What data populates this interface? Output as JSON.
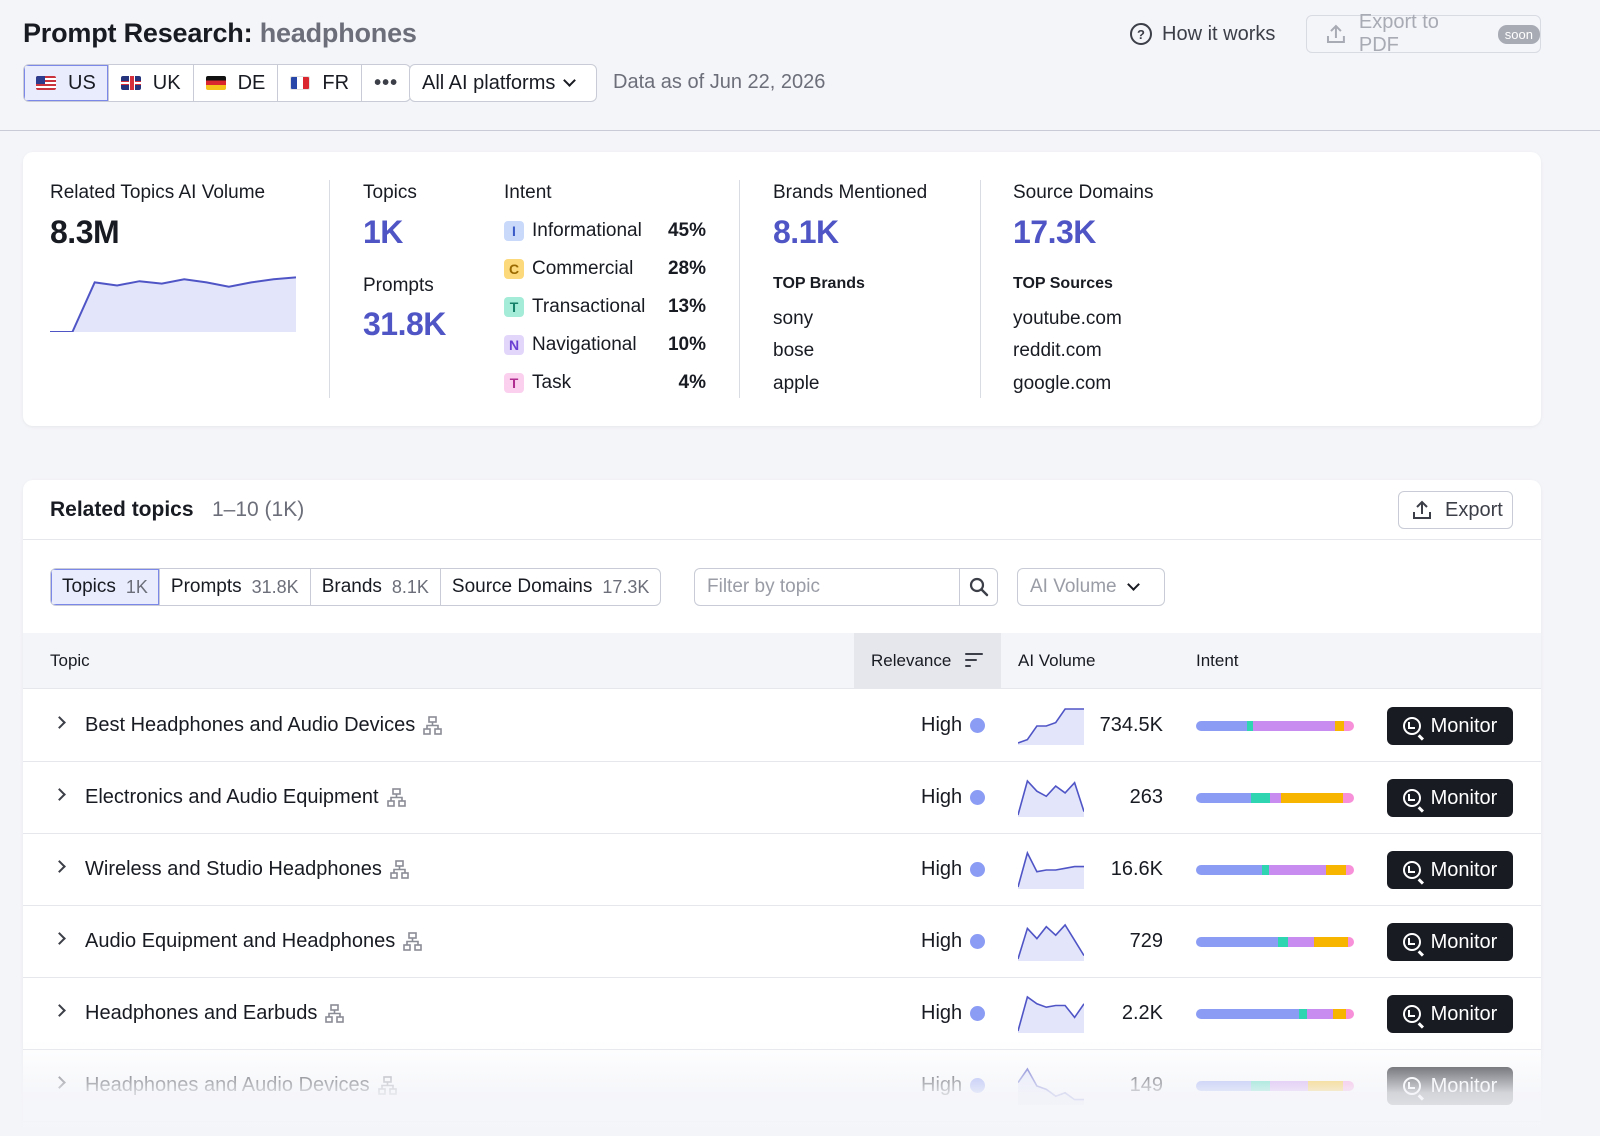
{
  "header": {
    "title_prefix": "Prompt Research:",
    "keyword": "headphones",
    "how_it_works": "How it works",
    "export_pdf": "Export to PDF",
    "soon_badge": "soon",
    "countries": [
      {
        "code": "US",
        "flag": "us-flag-icon",
        "active": true
      },
      {
        "code": "UK",
        "flag": "uk-flag-icon",
        "active": false
      },
      {
        "code": "DE",
        "flag": "de-flag-icon",
        "active": false
      },
      {
        "code": "FR",
        "flag": "fr-flag-icon",
        "active": false
      }
    ],
    "more_label": "•••",
    "platform_select": "All AI platforms",
    "data_as_of": "Data as of Jun 22, 2026"
  },
  "summary": {
    "ai_volume_label": "Related Topics AI Volume",
    "ai_volume_value": "8.3M",
    "ai_volume_trend": [
      0,
      0,
      0.8,
      0.75,
      0.82,
      0.78,
      0.85,
      0.8,
      0.73,
      0.8,
      0.85,
      0.88
    ],
    "topics_label": "Topics",
    "topics_value": "1K",
    "prompts_label": "Prompts",
    "prompts_value": "31.8K",
    "intent_label": "Intent",
    "intents": [
      {
        "letter": "I",
        "name": "Informational",
        "pct": "45%",
        "bg": "#c8d9fa",
        "fg": "#3a5bc7"
      },
      {
        "letter": "C",
        "name": "Commercial",
        "pct": "28%",
        "bg": "#fcd97a",
        "fg": "#9a6a00"
      },
      {
        "letter": "T",
        "name": "Transactional",
        "pct": "13%",
        "bg": "#a4ecd7",
        "fg": "#14806a"
      },
      {
        "letter": "N",
        "name": "Navigational",
        "pct": "10%",
        "bg": "#e2d6fb",
        "fg": "#6b3fd1"
      },
      {
        "letter": "T",
        "name": "Task",
        "pct": "4%",
        "bg": "#fbd0ef",
        "fg": "#b02c8f"
      }
    ],
    "brands_label": "Brands Mentioned",
    "brands_value": "8.1K",
    "top_brands_label": "TOP Brands",
    "top_brands": [
      "sony",
      "bose",
      "apple"
    ],
    "sources_label": "Source Domains",
    "sources_value": "17.3K",
    "top_sources_label": "TOP Sources",
    "top_sources": [
      "youtube.com",
      "reddit.com",
      "google.com"
    ]
  },
  "related": {
    "title": "Related topics",
    "range": "1–10 (1K)",
    "export_label": "Export",
    "tabs": [
      {
        "label": "Topics",
        "count": "1K",
        "active": true
      },
      {
        "label": "Prompts",
        "count": "31.8K",
        "active": false
      },
      {
        "label": "Brands",
        "count": "8.1K",
        "active": false
      },
      {
        "label": "Source Domains",
        "count": "17.3K",
        "active": false
      }
    ],
    "filter_placeholder": "Filter by topic",
    "sort_select": "AI Volume",
    "columns": {
      "topic": "Topic",
      "relevance": "Relevance",
      "ai_volume": "AI Volume",
      "intent": "Intent"
    },
    "monitor_label": "Monitor",
    "rows": [
      {
        "topic": "Best Headphones and Audio Devices",
        "relevance": "High",
        "volume": "734.5K",
        "trend": [
          0,
          0.1,
          0.5,
          0.5,
          0.6,
          1,
          1,
          1
        ],
        "intent_mix": [
          32,
          4,
          52,
          6,
          6
        ]
      },
      {
        "topic": "Electronics and Audio Equipment",
        "relevance": "High",
        "volume": "263",
        "trend": [
          0,
          1,
          0.7,
          0.55,
          0.85,
          0.65,
          0.95,
          0.1
        ],
        "intent_mix": [
          35,
          12,
          7,
          39,
          7
        ]
      },
      {
        "topic": "Wireless and Studio Headphones",
        "relevance": "High",
        "volume": "16.6K",
        "trend": [
          0,
          1,
          0.45,
          0.5,
          0.5,
          0.55,
          0.6,
          0.6
        ],
        "intent_mix": [
          42,
          4,
          36,
          13,
          5
        ]
      },
      {
        "topic": "Audio Equipment and Headphones",
        "relevance": "High",
        "volume": "729",
        "trend": [
          0,
          0.9,
          0.6,
          0.95,
          0.7,
          1,
          0.55,
          0.1
        ],
        "intent_mix": [
          52,
          6,
          17,
          21,
          4
        ]
      },
      {
        "topic": "Headphones and Earbuds",
        "relevance": "High",
        "volume": "2.2K",
        "trend": [
          0,
          1,
          0.8,
          0.7,
          0.75,
          0.75,
          0.4,
          0.8
        ],
        "intent_mix": [
          65,
          5,
          17,
          8,
          5
        ]
      },
      {
        "topic": "Headphones and Audio Devices",
        "relevance": "High",
        "volume": "149",
        "trend": [
          0.6,
          1,
          0.5,
          0.4,
          0.2,
          0.3,
          0.1,
          0.1
        ],
        "intent_mix": [
          35,
          12,
          24,
          22,
          7
        ]
      }
    ],
    "intent_colors": [
      "#8b9cf4",
      "#2fd4b0",
      "#c88bf0",
      "#f7b500",
      "#f78fd9"
    ]
  }
}
